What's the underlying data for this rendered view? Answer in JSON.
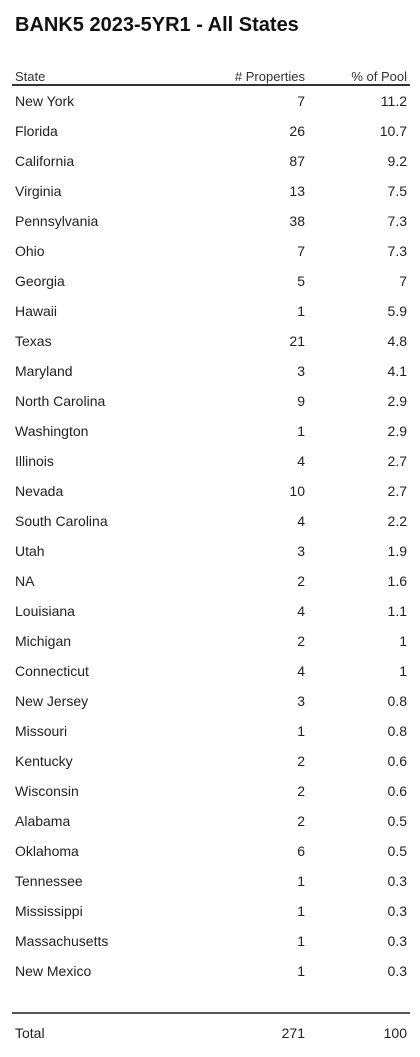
{
  "chart_data": {
    "type": "table",
    "title": "BANK5 2023-5YR1 - All States",
    "columns": [
      "State",
      "# Properties",
      "% of Pool"
    ],
    "rows": [
      {
        "state": "New York",
        "properties": "7",
        "pool": "11.2"
      },
      {
        "state": "Florida",
        "properties": "26",
        "pool": "10.7"
      },
      {
        "state": "California",
        "properties": "87",
        "pool": "9.2"
      },
      {
        "state": "Virginia",
        "properties": "13",
        "pool": "7.5"
      },
      {
        "state": "Pennsylvania",
        "properties": "38",
        "pool": "7.3"
      },
      {
        "state": "Ohio",
        "properties": "7",
        "pool": "7.3"
      },
      {
        "state": "Georgia",
        "properties": "5",
        "pool": "7"
      },
      {
        "state": "Hawaii",
        "properties": "1",
        "pool": "5.9"
      },
      {
        "state": "Texas",
        "properties": "21",
        "pool": "4.8"
      },
      {
        "state": "Maryland",
        "properties": "3",
        "pool": "4.1"
      },
      {
        "state": "North Carolina",
        "properties": "9",
        "pool": "2.9"
      },
      {
        "state": "Washington",
        "properties": "1",
        "pool": "2.9"
      },
      {
        "state": "Illinois",
        "properties": "4",
        "pool": "2.7"
      },
      {
        "state": "Nevada",
        "properties": "10",
        "pool": "2.7"
      },
      {
        "state": "South Carolina",
        "properties": "4",
        "pool": "2.2"
      },
      {
        "state": "Utah",
        "properties": "3",
        "pool": "1.9"
      },
      {
        "state": "NA",
        "properties": "2",
        "pool": "1.6"
      },
      {
        "state": "Louisiana",
        "properties": "4",
        "pool": "1.1"
      },
      {
        "state": "Michigan",
        "properties": "2",
        "pool": "1"
      },
      {
        "state": "Connecticut",
        "properties": "4",
        "pool": "1"
      },
      {
        "state": "New Jersey",
        "properties": "3",
        "pool": "0.8"
      },
      {
        "state": "Missouri",
        "properties": "1",
        "pool": "0.8"
      },
      {
        "state": "Kentucky",
        "properties": "2",
        "pool": "0.6"
      },
      {
        "state": "Wisconsin",
        "properties": "2",
        "pool": "0.6"
      },
      {
        "state": "Alabama",
        "properties": "2",
        "pool": "0.5"
      },
      {
        "state": "Oklahoma",
        "properties": "6",
        "pool": "0.5"
      },
      {
        "state": "Tennessee",
        "properties": "1",
        "pool": "0.3"
      },
      {
        "state": "Mississippi",
        "properties": "1",
        "pool": "0.3"
      },
      {
        "state": "Massachusetts",
        "properties": "1",
        "pool": "0.3"
      },
      {
        "state": "New Mexico",
        "properties": "1",
        "pool": "0.3"
      }
    ],
    "total": {
      "label": "Total",
      "properties": "271",
      "pool": "100"
    }
  }
}
